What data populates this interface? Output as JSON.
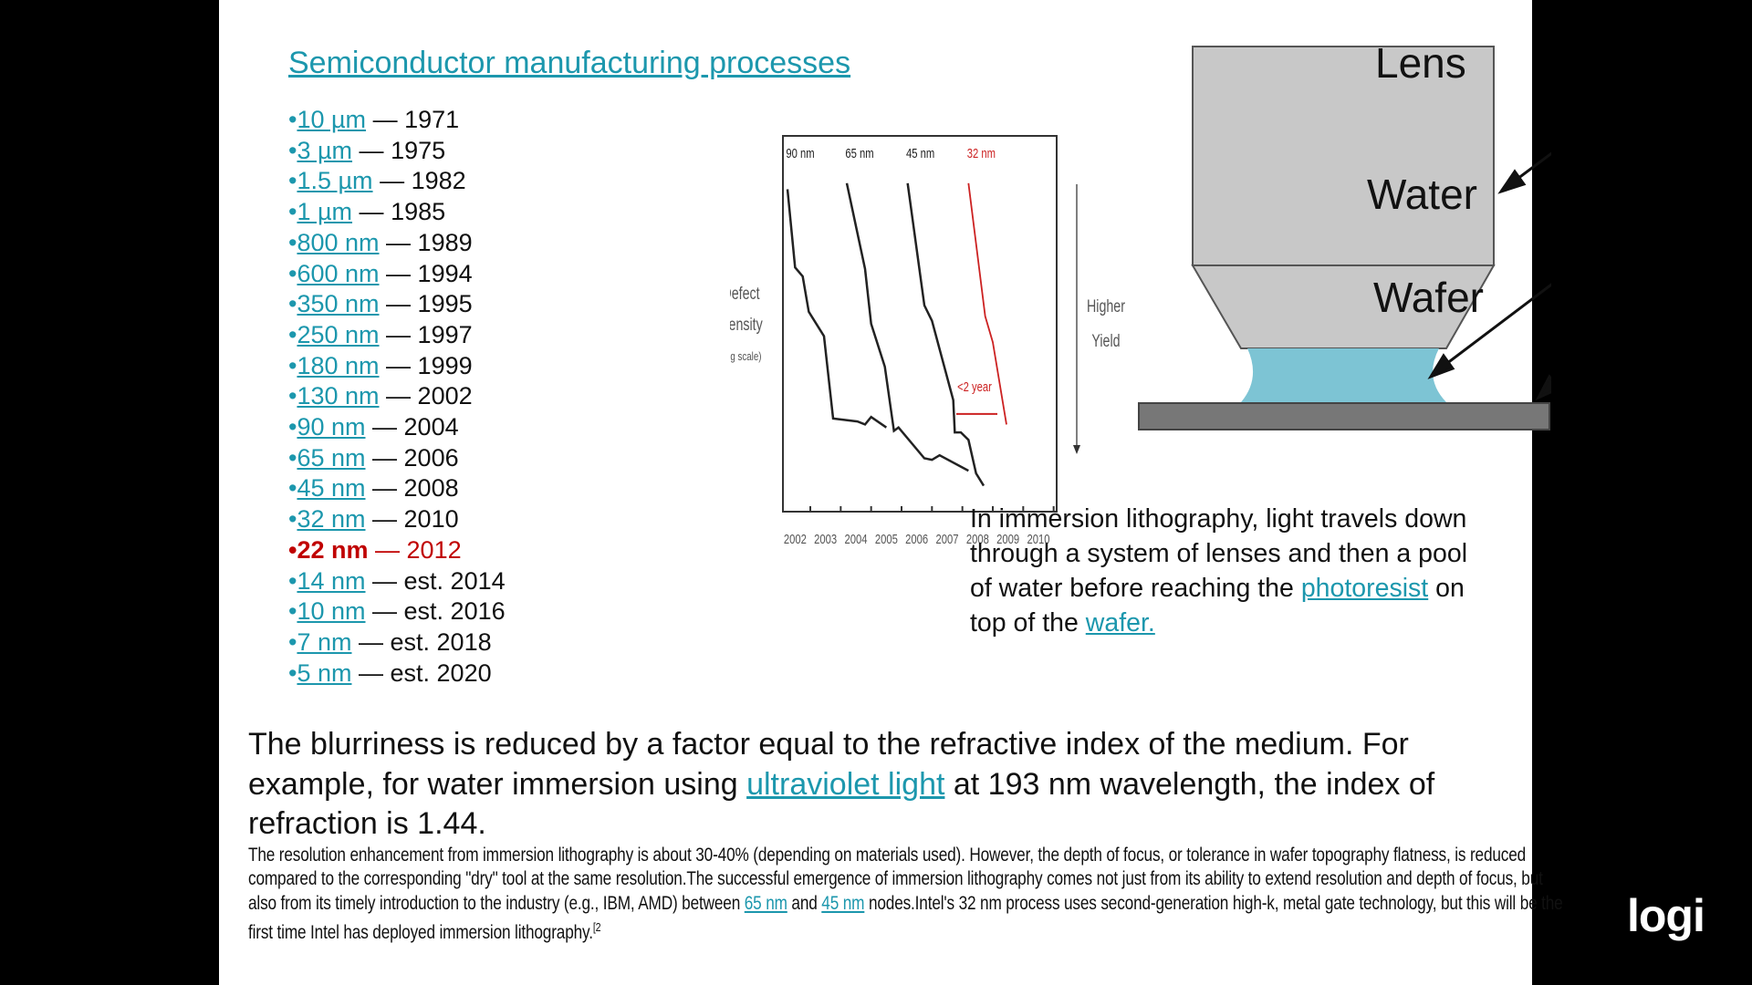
{
  "title": "Semiconductor manufacturing processes",
  "nodes": [
    {
      "node": "10 µm",
      "year": "1971"
    },
    {
      "node": "3 µm",
      "year": "1975"
    },
    {
      "node": "1.5 µm",
      "year": "1982"
    },
    {
      "node": "1 µm",
      "year": "1985"
    },
    {
      "node": "800 nm",
      "year": "1989"
    },
    {
      "node": "600 nm",
      "year": "1994"
    },
    {
      "node": "350 nm",
      "year": "1995"
    },
    {
      "node": "250 nm",
      "year": "1997"
    },
    {
      "node": "180 nm",
      "year": "1999"
    },
    {
      "node": "130 nm",
      "year": "2002"
    },
    {
      "node": "90 nm",
      "year": "2004"
    },
    {
      "node": "65 nm",
      "year": "2006"
    },
    {
      "node": "45 nm",
      "year": "2008"
    },
    {
      "node": "32 nm",
      "year": "2010"
    },
    {
      "node": "22 nm",
      "year": "2012",
      "highlight": true
    },
    {
      "node": "14 nm",
      "year": "est. 2014"
    },
    {
      "node": "10 nm",
      "year": "est. 2016"
    },
    {
      "node": "7 nm",
      "year": "est. 2018"
    },
    {
      "node": "5 nm",
      "year": "est. 2020"
    }
  ],
  "separator": "—",
  "chart_data": {
    "type": "line",
    "ylabel": "Defect Density",
    "ylabel_note": "(log scale)",
    "right_label": [
      "Higher",
      "Yield"
    ],
    "annotation": "<2 year",
    "xlim": [
      2001.6,
      2010.6
    ],
    "ylim": [
      0,
      100
    ],
    "x_ticks": [
      "2002",
      "2003",
      "2004",
      "2005",
      "2006",
      "2007",
      "2008",
      "2009",
      "2010"
    ],
    "series": [
      {
        "name": "90 nm",
        "color": "#222222",
        "points": [
          [
            2001.75,
            85.8
          ],
          [
            2002.0,
            65.0
          ],
          [
            2002.25,
            62.6
          ],
          [
            2002.45,
            53.2
          ],
          [
            2002.95,
            46.7
          ],
          [
            2003.25,
            24.8
          ],
          [
            2004.05,
            24.0
          ],
          [
            2004.3,
            23.2
          ],
          [
            2004.5,
            25.2
          ],
          [
            2005.0,
            22.4
          ]
        ]
      },
      {
        "name": "65 nm",
        "color": "#222222",
        "points": [
          [
            2003.7,
            87.4
          ],
          [
            2004.3,
            64.6
          ],
          [
            2004.5,
            50.0
          ],
          [
            2004.95,
            38.6
          ],
          [
            2005.25,
            21.5
          ],
          [
            2005.4,
            22.4
          ],
          [
            2006.25,
            14.2
          ],
          [
            2006.5,
            13.8
          ],
          [
            2006.75,
            15.0
          ],
          [
            2007.7,
            10.9
          ]
        ]
      },
      {
        "name": "45 nm",
        "color": "#222222",
        "points": [
          [
            2005.7,
            87.4
          ],
          [
            2006.25,
            54.9
          ],
          [
            2006.5,
            50.8
          ],
          [
            2007.2,
            29.7
          ],
          [
            2007.25,
            21.1
          ],
          [
            2007.45,
            21.1
          ],
          [
            2007.7,
            19.1
          ],
          [
            2007.95,
            10.2
          ],
          [
            2008.2,
            6.9
          ]
        ]
      },
      {
        "name": "32 nm",
        "color": "#cc2222",
        "points": [
          [
            2007.7,
            87.4
          ],
          [
            2008.25,
            52.0
          ],
          [
            2008.5,
            45.1
          ],
          [
            2008.95,
            23.2
          ]
        ]
      }
    ]
  },
  "diagram": {
    "lens": "Lens",
    "water": "Water",
    "wafer": "Wafer"
  },
  "right_paragraph": {
    "pre": "In immersion lithography, light travels down through a system of lenses and then a pool of water before reaching the ",
    "link1": "photoresist",
    "mid": " on top of the ",
    "link2": "wafer."
  },
  "big_paragraph": {
    "pre": "The blurriness is reduced by a factor equal to the refractive index of the medium. For example, for water immersion using ",
    "link": "ultraviolet light",
    "post": " at 193 nm wavelength, the index of refraction is 1.44."
  },
  "small_paragraph": {
    "pre": "The resolution enhancement from immersion lithography is about 30-40% (depending on materials used). However, the depth of focus, or tolerance in wafer topography flatness, is reduced compared to the corresponding \"dry\" tool at the same resolution.The successful emergence of immersion lithography comes not just from its ability to extend resolution and depth of focus, but also from its timely introduction to the industry (e.g., IBM, AMD) between ",
    "link1": "65 nm",
    "mid": " and ",
    "link2": "45 nm",
    "post": " nodes.Intel's 32 nm process uses second-generation high-k, metal gate technology, but this will be the first time Intel has deployed immersion lithography.",
    "ref": "[2"
  },
  "logo": "logi"
}
